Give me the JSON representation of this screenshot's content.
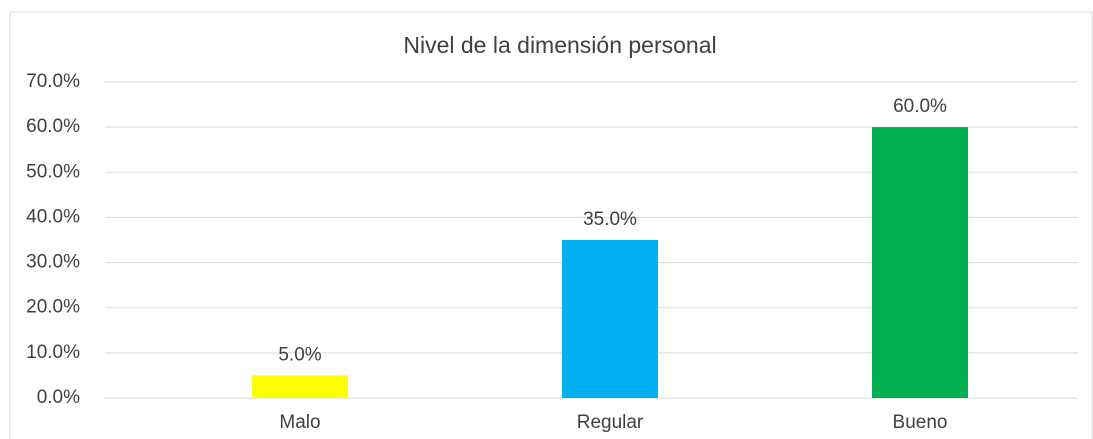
{
  "chart_data": {
    "type": "bar",
    "title": "Nivel de la dimensión personal",
    "categories": [
      "Malo",
      "Regular",
      "Bueno"
    ],
    "values": [
      5,
      35,
      60
    ],
    "value_labels": [
      "5.0%",
      "35.0%",
      "60.0%"
    ],
    "colors": [
      "#ffff00",
      "#00b0f0",
      "#00b050"
    ],
    "ylim": [
      0,
      70
    ],
    "yticks": [
      {
        "value": 0,
        "label": "0.0%"
      },
      {
        "value": 10,
        "label": "10.0%"
      },
      {
        "value": 20,
        "label": "20.0%"
      },
      {
        "value": 30,
        "label": "30.0%"
      },
      {
        "value": 40,
        "label": "40.0%"
      },
      {
        "value": 50,
        "label": "50.0%"
      },
      {
        "value": 60,
        "label": "60.0%"
      },
      {
        "value": 70,
        "label": "70.0%"
      }
    ],
    "grid": true
  }
}
